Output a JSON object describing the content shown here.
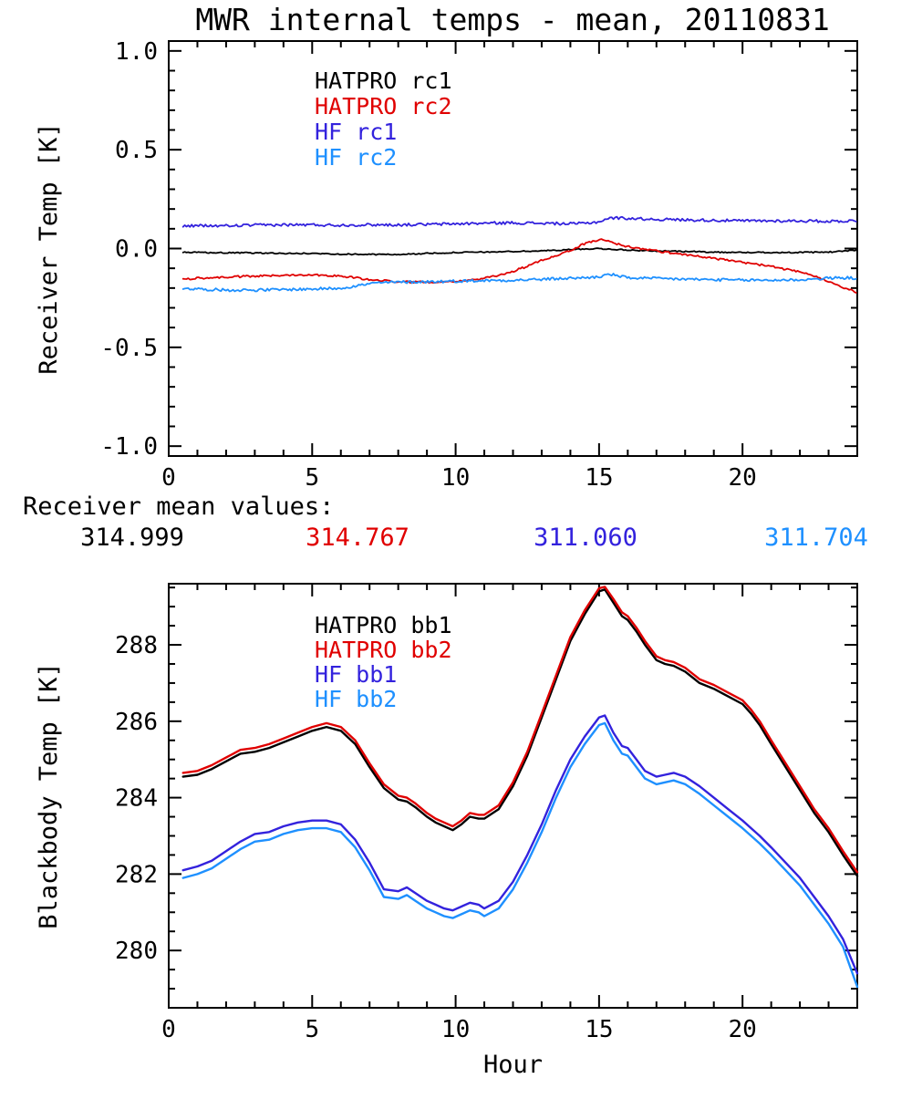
{
  "title": "MWR internal temps - mean, 20110831",
  "mean_values": {
    "label": "Receiver mean values:",
    "values": [
      {
        "text": "314.999",
        "series": "HATPRO rc1",
        "color": "#000000"
      },
      {
        "text": "314.767",
        "series": "HATPRO rc2",
        "color": "#e00000"
      },
      {
        "text": "311.060",
        "series": "HF rc1",
        "color": "#3322dd"
      },
      {
        "text": "311.704",
        "series": "HF rc2",
        "color": "#1e90ff"
      }
    ]
  },
  "chart_data": [
    {
      "type": "line",
      "name": "receiver_temp_panel",
      "xlabel": "",
      "ylabel": "Receiver Temp [K]",
      "xlim": [
        0,
        24
      ],
      "ylim": [
        -1.05,
        1.05
      ],
      "grid": false,
      "legend_position": "upper-left-inside",
      "xticks": {
        "major": [
          0,
          5,
          10,
          15,
          20
        ],
        "labels": [
          "0",
          "5",
          "10",
          "15",
          "20"
        ],
        "minor_step": 1
      },
      "yticks": {
        "major": [
          -1.0,
          -0.5,
          0.0,
          0.5,
          1.0
        ],
        "labels": [
          "-1.0",
          "-0.5",
          "0.0",
          "0.5",
          "1.0"
        ],
        "minor_step": 0.1
      },
      "series": [
        {
          "name": "HATPRO rc1",
          "color": "#000000",
          "noise": 0.003,
          "width": 1.8,
          "x": [
            0.5,
            1,
            2,
            3,
            4,
            5,
            6,
            7,
            8,
            9,
            10,
            11,
            12,
            13,
            14,
            15,
            16,
            17,
            18,
            19,
            20,
            21,
            22,
            23,
            24
          ],
          "y": [
            -0.02,
            -0.02,
            -0.022,
            -0.022,
            -0.025,
            -0.025,
            -0.028,
            -0.03,
            -0.03,
            -0.025,
            -0.02,
            -0.018,
            -0.015,
            -0.012,
            -0.005,
            0.0,
            -0.008,
            -0.012,
            -0.015,
            -0.018,
            -0.02,
            -0.02,
            -0.02,
            -0.018,
            -0.008
          ]
        },
        {
          "name": "HATPRO rc2",
          "color": "#e00000",
          "noise": 0.005,
          "width": 1.8,
          "x": [
            0.5,
            1,
            1.5,
            2,
            2.5,
            3,
            3.5,
            4,
            4.5,
            5,
            5.5,
            6,
            6.5,
            7,
            7.5,
            8,
            8.5,
            9,
            9.5,
            10,
            10.5,
            11,
            11.5,
            12,
            12.5,
            13,
            13.5,
            14,
            14.5,
            15,
            15.3,
            15.7,
            16,
            16.5,
            17,
            17.5,
            18,
            18.5,
            19,
            19.5,
            20,
            20.5,
            21,
            21.5,
            22,
            22.5,
            23,
            23.5,
            24
          ],
          "y": [
            -0.155,
            -0.15,
            -0.148,
            -0.145,
            -0.142,
            -0.14,
            -0.138,
            -0.135,
            -0.133,
            -0.133,
            -0.135,
            -0.14,
            -0.148,
            -0.158,
            -0.163,
            -0.167,
            -0.17,
            -0.17,
            -0.168,
            -0.165,
            -0.16,
            -0.152,
            -0.135,
            -0.115,
            -0.09,
            -0.06,
            -0.035,
            -0.01,
            0.025,
            0.045,
            0.04,
            0.02,
            0.01,
            -0.002,
            -0.012,
            -0.022,
            -0.03,
            -0.04,
            -0.05,
            -0.06,
            -0.07,
            -0.08,
            -0.09,
            -0.105,
            -0.12,
            -0.14,
            -0.165,
            -0.195,
            -0.225
          ]
        },
        {
          "name": "HF rc1",
          "color": "#3322dd",
          "noise": 0.007,
          "width": 1.8,
          "x": [
            0.5,
            1,
            2,
            3,
            4,
            5,
            6,
            7,
            8,
            9,
            10,
            11,
            12,
            13,
            14,
            14.5,
            15,
            15.3,
            15.6,
            16,
            16.5,
            17,
            18,
            19,
            20,
            21,
            22,
            23,
            24
          ],
          "y": [
            0.115,
            0.115,
            0.115,
            0.118,
            0.12,
            0.12,
            0.118,
            0.12,
            0.12,
            0.122,
            0.125,
            0.128,
            0.13,
            0.128,
            0.125,
            0.128,
            0.135,
            0.152,
            0.155,
            0.153,
            0.15,
            0.148,
            0.145,
            0.143,
            0.14,
            0.14,
            0.14,
            0.138,
            0.14
          ]
        },
        {
          "name": "HF rc2",
          "color": "#1e90ff",
          "noise": 0.007,
          "width": 1.8,
          "x": [
            0.5,
            1,
            2,
            3,
            4,
            5,
            6,
            6.5,
            7,
            7.5,
            8,
            9,
            10,
            11,
            12,
            13,
            14,
            14.5,
            15,
            15.4,
            15.7,
            16,
            16.5,
            17,
            18,
            19,
            20,
            21,
            22,
            22.5,
            23,
            23.5,
            24
          ],
          "y": [
            -0.2,
            -0.205,
            -0.21,
            -0.21,
            -0.208,
            -0.205,
            -0.2,
            -0.19,
            -0.178,
            -0.172,
            -0.17,
            -0.168,
            -0.165,
            -0.162,
            -0.16,
            -0.156,
            -0.15,
            -0.148,
            -0.143,
            -0.13,
            -0.14,
            -0.148,
            -0.15,
            -0.152,
            -0.155,
            -0.158,
            -0.16,
            -0.16,
            -0.158,
            -0.155,
            -0.15,
            -0.148,
            -0.15
          ]
        }
      ]
    },
    {
      "type": "line",
      "name": "blackbody_temp_panel",
      "xlabel": "Hour",
      "ylabel": "Blackbody Temp [K]",
      "xlim": [
        0,
        24
      ],
      "ylim": [
        278.5,
        289.6
      ],
      "grid": false,
      "legend_position": "upper-left-inside",
      "xticks": {
        "major": [
          0,
          5,
          10,
          15,
          20
        ],
        "labels": [
          "0",
          "5",
          "10",
          "15",
          "20"
        ],
        "minor_step": 1
      },
      "yticks": {
        "major": [
          280,
          282,
          284,
          286,
          288
        ],
        "labels": [
          "280",
          "282",
          "284",
          "286",
          "288"
        ],
        "minor_step": 0.5
      },
      "series": [
        {
          "name": "HATPRO bb1",
          "color": "#000000",
          "noise": 0,
          "width": 2.4,
          "x": [
            0.5,
            1,
            1.5,
            2,
            2.5,
            3,
            3.5,
            4,
            4.5,
            5,
            5.5,
            6,
            6.5,
            7,
            7.5,
            8,
            8.3,
            8.6,
            9,
            9.3,
            9.6,
            9.9,
            10.2,
            10.5,
            10.8,
            11,
            11.5,
            12,
            12.5,
            13,
            13.5,
            14,
            14.5,
            15,
            15.2,
            15.5,
            15.8,
            16,
            16.3,
            16.6,
            17,
            17.3,
            17.6,
            18,
            18.5,
            19,
            19.5,
            20,
            20.3,
            20.6,
            21,
            21.5,
            22,
            22.5,
            23,
            23.5,
            24
          ],
          "y": [
            284.55,
            284.6,
            284.75,
            284.95,
            285.15,
            285.2,
            285.3,
            285.45,
            285.6,
            285.75,
            285.85,
            285.75,
            285.4,
            284.8,
            284.25,
            283.95,
            283.9,
            283.75,
            283.5,
            283.35,
            283.25,
            283.15,
            283.3,
            283.5,
            283.45,
            283.45,
            283.7,
            284.3,
            285.1,
            286.1,
            287.1,
            288.1,
            288.8,
            289.4,
            289.45,
            289.1,
            288.75,
            288.65,
            288.35,
            288.0,
            287.6,
            287.5,
            287.45,
            287.3,
            287.0,
            286.85,
            286.65,
            286.45,
            286.2,
            285.9,
            285.4,
            284.8,
            284.2,
            283.6,
            283.1,
            282.5,
            281.95
          ]
        },
        {
          "name": "HATPRO bb2",
          "color": "#e00000",
          "noise": 0,
          "width": 2.4,
          "x": [
            0.5,
            1,
            1.5,
            2,
            2.5,
            3,
            3.5,
            4,
            4.5,
            5,
            5.5,
            6,
            6.5,
            7,
            7.5,
            8,
            8.3,
            8.6,
            9,
            9.3,
            9.6,
            9.9,
            10.2,
            10.5,
            10.8,
            11,
            11.5,
            12,
            12.5,
            13,
            13.5,
            14,
            14.5,
            15,
            15.2,
            15.5,
            15.8,
            16,
            16.3,
            16.6,
            17,
            17.3,
            17.6,
            18,
            18.5,
            19,
            19.5,
            20,
            20.3,
            20.6,
            21,
            21.5,
            22,
            22.5,
            23,
            23.5,
            24
          ],
          "y": [
            284.65,
            284.7,
            284.85,
            285.05,
            285.25,
            285.3,
            285.4,
            285.55,
            285.7,
            285.85,
            285.95,
            285.85,
            285.5,
            284.9,
            284.35,
            284.05,
            284.0,
            283.85,
            283.6,
            283.45,
            283.35,
            283.25,
            283.4,
            283.6,
            283.55,
            283.55,
            283.8,
            284.4,
            285.2,
            286.2,
            287.2,
            288.2,
            288.9,
            289.48,
            289.52,
            289.2,
            288.85,
            288.75,
            288.45,
            288.1,
            287.7,
            287.6,
            287.55,
            287.4,
            287.1,
            286.95,
            286.75,
            286.55,
            286.3,
            286.0,
            285.5,
            284.9,
            284.3,
            283.7,
            283.2,
            282.6,
            282.05
          ]
        },
        {
          "name": "HF bb1",
          "color": "#3322dd",
          "noise": 0,
          "width": 2.4,
          "x": [
            0.5,
            1,
            1.5,
            2,
            2.5,
            3,
            3.5,
            4,
            4.5,
            5,
            5.5,
            6,
            6.5,
            7,
            7.5,
            8,
            8.3,
            8.6,
            9,
            9.3,
            9.6,
            9.9,
            10.2,
            10.5,
            10.8,
            11,
            11.5,
            12,
            12.5,
            13,
            13.5,
            14,
            14.5,
            15,
            15.2,
            15.5,
            15.8,
            16,
            16.3,
            16.6,
            17,
            17.3,
            17.6,
            18,
            18.5,
            19,
            19.5,
            20,
            20.3,
            20.6,
            21,
            21.5,
            22,
            22.5,
            23,
            23.5,
            24
          ],
          "y": [
            282.1,
            282.2,
            282.35,
            282.6,
            282.85,
            283.05,
            283.1,
            283.25,
            283.35,
            283.4,
            283.4,
            283.3,
            282.9,
            282.3,
            281.6,
            281.55,
            281.65,
            281.5,
            281.3,
            281.2,
            281.1,
            281.05,
            281.15,
            281.25,
            281.2,
            281.1,
            281.3,
            281.8,
            282.5,
            283.3,
            284.2,
            285.0,
            285.6,
            286.1,
            286.15,
            285.7,
            285.35,
            285.3,
            285.0,
            284.7,
            284.55,
            284.6,
            284.65,
            284.55,
            284.3,
            284.0,
            283.7,
            283.4,
            283.2,
            283.0,
            282.7,
            282.3,
            281.9,
            281.4,
            280.9,
            280.3,
            279.4
          ]
        },
        {
          "name": "HF bb2",
          "color": "#1e90ff",
          "noise": 0,
          "width": 2.4,
          "x": [
            0.5,
            1,
            1.5,
            2,
            2.5,
            3,
            3.5,
            4,
            4.5,
            5,
            5.5,
            6,
            6.5,
            7,
            7.5,
            8,
            8.3,
            8.6,
            9,
            9.3,
            9.6,
            9.9,
            10.2,
            10.5,
            10.8,
            11,
            11.5,
            12,
            12.5,
            13,
            13.5,
            14,
            14.5,
            15,
            15.2,
            15.5,
            15.8,
            16,
            16.3,
            16.6,
            17,
            17.3,
            17.6,
            18,
            18.5,
            19,
            19.5,
            20,
            20.3,
            20.6,
            21,
            21.5,
            22,
            22.5,
            23,
            23.5,
            24
          ],
          "y": [
            281.9,
            282.0,
            282.15,
            282.4,
            282.65,
            282.85,
            282.9,
            283.05,
            283.15,
            283.2,
            283.2,
            283.1,
            282.7,
            282.1,
            281.4,
            281.35,
            281.45,
            281.3,
            281.1,
            281.0,
            280.9,
            280.85,
            280.95,
            281.05,
            281.0,
            280.9,
            281.1,
            281.6,
            282.3,
            283.1,
            284.0,
            284.8,
            285.4,
            285.9,
            285.95,
            285.5,
            285.15,
            285.1,
            284.8,
            284.5,
            284.35,
            284.4,
            284.45,
            284.35,
            284.1,
            283.8,
            283.5,
            283.2,
            283.0,
            282.8,
            282.5,
            282.1,
            281.7,
            281.2,
            280.7,
            280.1,
            279.05
          ]
        }
      ]
    }
  ]
}
